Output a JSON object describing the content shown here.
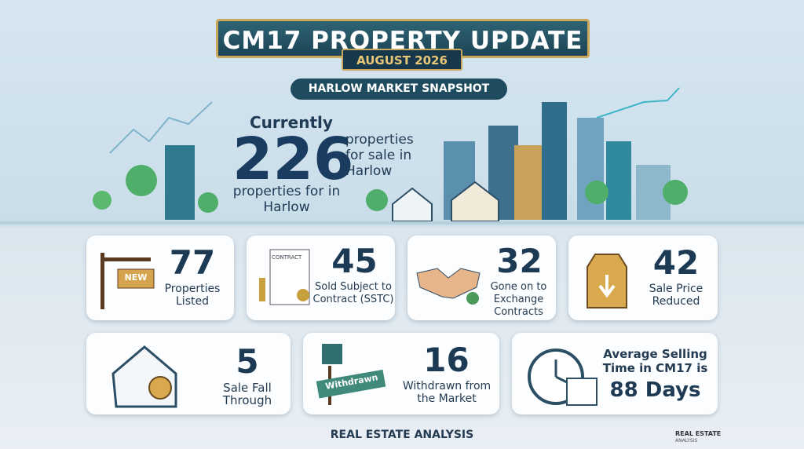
{
  "header": {
    "title": "CM17 PROPERTY UPDATE",
    "subtitle": "AUGUST 2026",
    "tag": "HARLOW MARKET SNAPSHOT"
  },
  "hero": {
    "lead": "Currently",
    "count": 226,
    "side_text": "properties for sale in Harlow",
    "below_text": "properties for in Harlow"
  },
  "cards": [
    {
      "value": 77,
      "label": "Properties Listed",
      "icon_text": "NEW"
    },
    {
      "value": 45,
      "label": "Sold Subject to Contract (SSTC)",
      "icon_text": "CONTRACT"
    },
    {
      "value": 32,
      "label": "Gone on to Exchange Contracts"
    },
    {
      "value": 42,
      "label": "Sale Price Reduced"
    },
    {
      "value": 5,
      "label": "Sale Fall Through"
    },
    {
      "value": 16,
      "label": "Withdrawn from the Market",
      "icon_text": "Withdrawn"
    },
    {
      "label": "Average Selling Time in CM17 is",
      "value_text": "88 Days"
    }
  ],
  "footer": {
    "text": "REAL ESTATE ANALYSIS",
    "logo_top": "REAL ESTATE",
    "logo_bottom": "ANALYSIS"
  }
}
